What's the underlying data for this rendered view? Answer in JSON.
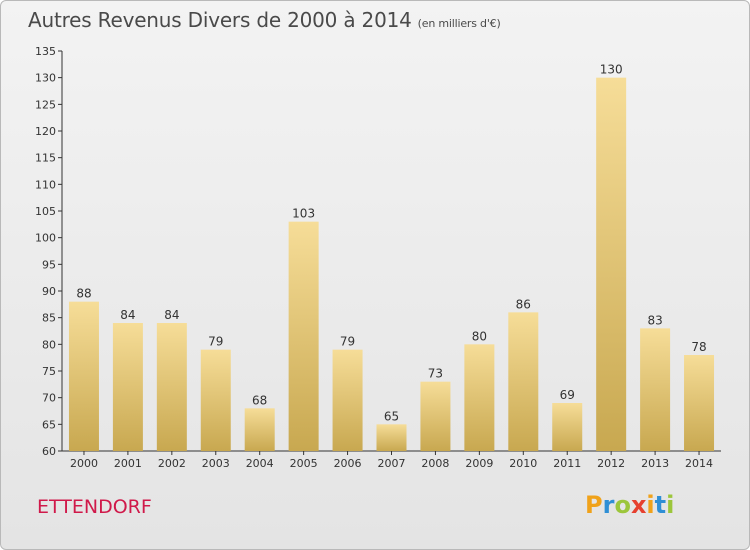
{
  "title": "Autres Revenus Divers de 2000 à 2014",
  "subtitle": "(en milliers d'€)",
  "location": "ETTENDORF",
  "brand": {
    "letters": [
      "P",
      "r",
      "o",
      "x",
      "i",
      "t",
      "i"
    ],
    "colors": [
      "#f0a21a",
      "#2f8fd5",
      "#9cc63b",
      "#e6402f",
      "#f0a21a",
      "#2f8fd5",
      "#9cc63b"
    ]
  },
  "colors": {
    "bar_light": "#f6dd98",
    "bar_dark": "#c8a850",
    "title": "#4a4a4a",
    "location": "#d0194a"
  },
  "chart_data": {
    "type": "bar",
    "title": "Autres Revenus Divers de 2000 à 2014",
    "subtitle": "(en milliers d'€)",
    "categories": [
      "2000",
      "2001",
      "2002",
      "2003",
      "2004",
      "2005",
      "2006",
      "2007",
      "2008",
      "2009",
      "2010",
      "2011",
      "2012",
      "2013",
      "2014"
    ],
    "values": [
      88,
      84,
      84,
      79,
      68,
      103,
      79,
      65,
      73,
      80,
      86,
      69,
      130,
      83,
      78
    ],
    "ylim": [
      60,
      135
    ],
    "yticks": [
      60,
      65,
      70,
      75,
      80,
      85,
      90,
      95,
      100,
      105,
      110,
      115,
      120,
      125,
      130,
      135
    ],
    "grid": false,
    "legend": "none"
  }
}
